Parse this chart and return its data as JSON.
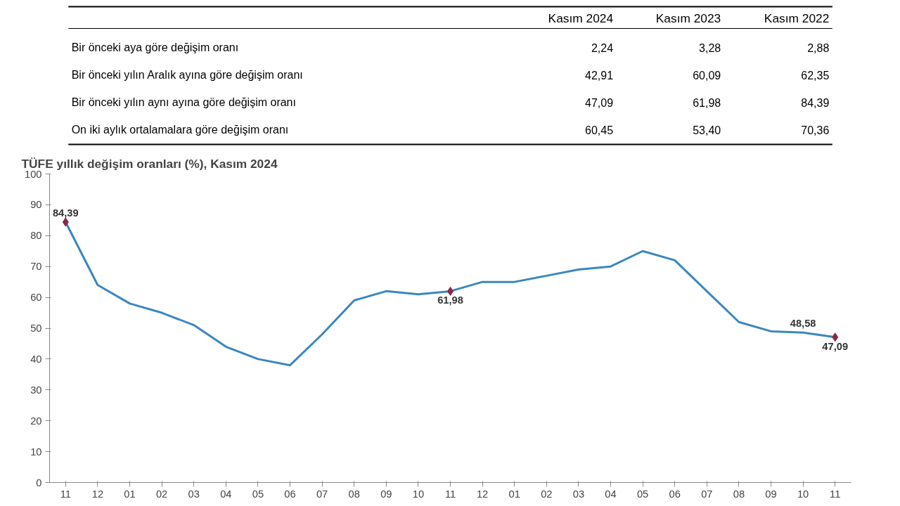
{
  "chart_data": [
    {
      "type": "other",
      "categories": [
        "Bir önceki aya göre değişim oranı",
        "Bir önceki yılın Aralık ayına göre değişim oranı",
        "Bir önceki yılın aynı ayına göre değişim oranı",
        "On iki aylık ortalamalara göre değişim oranı"
      ],
      "series": [
        {
          "name": "Kasım 2024",
          "values": [
            2.24,
            42.91,
            47.09,
            60.45
          ],
          "value_labels": [
            "2,24",
            "42,91",
            "47,09",
            "60,45"
          ]
        },
        {
          "name": "Kasım 2023",
          "values": [
            3.28,
            60.09,
            61.98,
            53.4
          ],
          "value_labels": [
            "3,28",
            "60,09",
            "61,98",
            "53,40"
          ]
        },
        {
          "name": "Kasım 2022",
          "values": [
            2.88,
            62.35,
            84.39,
            70.36
          ],
          "value_labels": [
            "2,88",
            "62,35",
            "84,39",
            "70,36"
          ]
        }
      ]
    },
    {
      "type": "line",
      "title": "TÜFE yıllık değişim oranları (%), Kasım 2024",
      "categories": [
        "11",
        "12",
        "01",
        "02",
        "03",
        "04",
        "05",
        "06",
        "07",
        "08",
        "09",
        "10",
        "11",
        "12",
        "01",
        "02",
        "03",
        "04",
        "05",
        "06",
        "07",
        "08",
        "09",
        "10",
        "11"
      ],
      "series": [
        {
          "type": "line",
          "color": "#3a87c0",
          "values": [
            84.39,
            64,
            58,
            55,
            51,
            44,
            40,
            38,
            48,
            59,
            62,
            61,
            61.98,
            65,
            65,
            67,
            69,
            70,
            75,
            72,
            62,
            52,
            49,
            48.58,
            47.09
          ],
          "value_labels": [
            "84,39",
            null,
            null,
            null,
            null,
            null,
            null,
            null,
            null,
            null,
            null,
            null,
            "61,98",
            null,
            null,
            null,
            null,
            null,
            null,
            null,
            null,
            null,
            null,
            "48,58",
            "47,09"
          ]
        },
        {
          "type": "scatter",
          "color": "#8b2846",
          "marker": "diamond",
          "values": [
            84.39,
            null,
            null,
            null,
            null,
            null,
            null,
            null,
            null,
            null,
            null,
            null,
            61.98,
            null,
            null,
            null,
            null,
            null,
            null,
            null,
            null,
            null,
            null,
            null,
            47.09
          ]
        }
      ],
      "ylim": [
        0,
        100
      ],
      "yticks": [
        0,
        10,
        20,
        30,
        40,
        50,
        60,
        70,
        80,
        90,
        100
      ],
      "grid": false,
      "line_style": "solid"
    }
  ]
}
